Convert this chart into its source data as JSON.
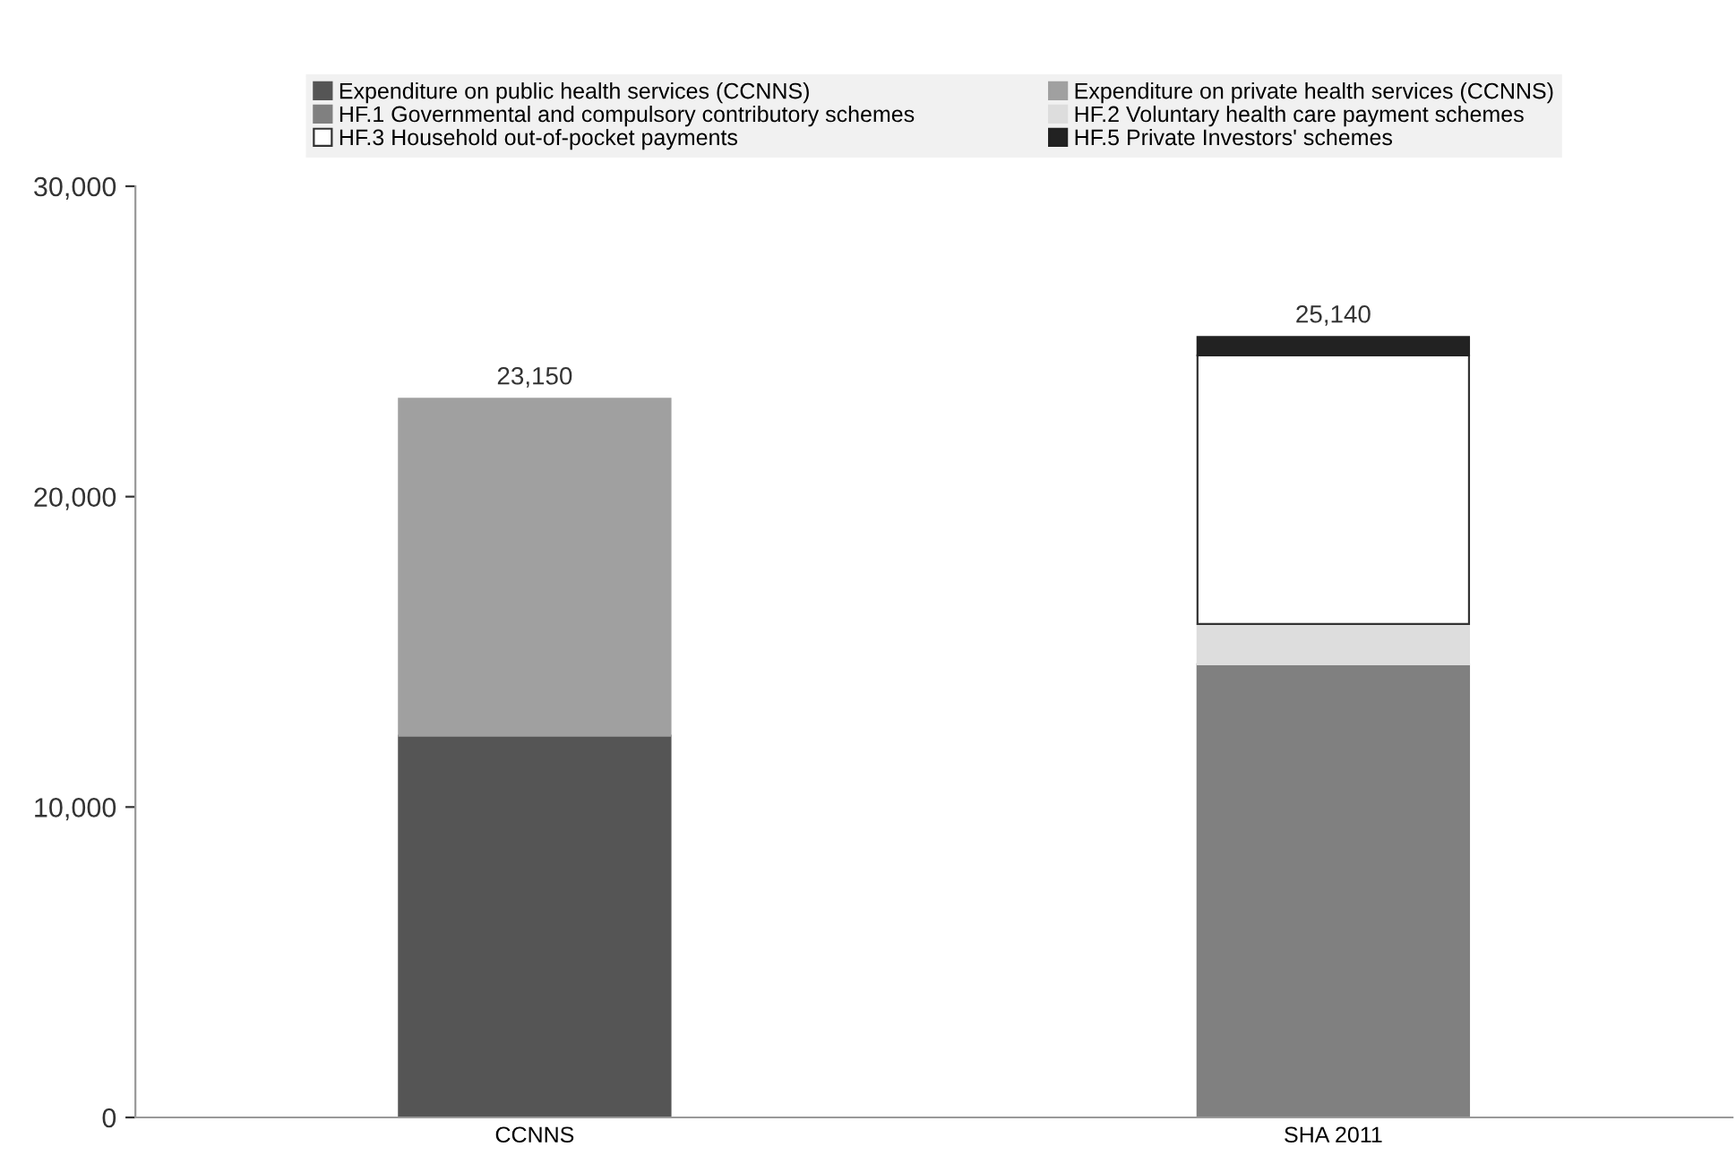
{
  "chart_data": {
    "type": "bar",
    "stacked": true,
    "categories": [
      "CCNNS",
      "SHA 2011"
    ],
    "series": [
      {
        "name": "Expenditure on public health services (CCNNS)",
        "color": "#555555",
        "values": [
          12300,
          null
        ]
      },
      {
        "name": "Expenditure on private health services (CCNNS)",
        "color": "#a0a0a0",
        "values": [
          10850,
          null
        ]
      },
      {
        "name": "HF.1 Governmental and compulsory contributory schemes",
        "color": "#808080",
        "values": [
          null,
          14600
        ]
      },
      {
        "name": "HF.2 Voluntary health care payment schemes",
        "color": "#dddddd",
        "values": [
          null,
          1300
        ]
      },
      {
        "name": "HF.3 Household out-of-pocket payments",
        "color": "#ffffff",
        "values": [
          null,
          8650
        ]
      },
      {
        "name": "HF.5 Private Investors' schemes",
        "color": "#222222",
        "values": [
          null,
          590
        ]
      }
    ],
    "totals": [
      "23,150",
      "25,140"
    ],
    "ylim": [
      0,
      30000
    ],
    "yticks": [
      {
        "value": 0,
        "label": "0"
      },
      {
        "value": 10000,
        "label": "10,000"
      },
      {
        "value": 20000,
        "label": "20,000"
      },
      {
        "value": 30000,
        "label": "30,000"
      }
    ],
    "grid": false,
    "legend": "top"
  }
}
